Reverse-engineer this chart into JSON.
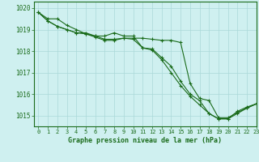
{
  "title": "Graphe pression niveau de la mer (hPa)",
  "background_color": "#cff0f0",
  "grid_color": "#aad8d8",
  "line_color": "#1a6b1a",
  "xlim": [
    -0.5,
    23
  ],
  "ylim": [
    1014.5,
    1020.3
  ],
  "yticks": [
    1015,
    1016,
    1017,
    1018,
    1019,
    1020
  ],
  "xticks": [
    0,
    1,
    2,
    3,
    4,
    5,
    6,
    7,
    8,
    9,
    10,
    11,
    12,
    13,
    14,
    15,
    16,
    17,
    18,
    19,
    20,
    21,
    22,
    23
  ],
  "series": [
    [
      1019.8,
      1019.5,
      1019.5,
      1019.2,
      1019.0,
      1018.8,
      1018.7,
      1018.7,
      1018.85,
      1018.7,
      1018.7,
      1018.15,
      1018.1,
      1017.7,
      1017.3,
      1016.6,
      1016.0,
      1015.7,
      1015.1,
      1014.85,
      1014.85,
      1015.2,
      1015.4,
      1015.55
    ],
    [
      1019.8,
      1019.4,
      1019.15,
      1019.0,
      1018.85,
      1018.85,
      1018.7,
      1018.55,
      1018.55,
      1018.6,
      1018.6,
      1018.6,
      1018.55,
      1018.5,
      1018.5,
      1018.4,
      1016.5,
      1015.8,
      1015.7,
      1014.9,
      1014.9,
      1015.15,
      1015.35,
      1015.55
    ],
    [
      1019.8,
      1019.4,
      1019.15,
      1019.0,
      1018.85,
      1018.8,
      1018.65,
      1018.5,
      1018.5,
      1018.6,
      1018.55,
      1018.15,
      1018.05,
      1017.6,
      1017.0,
      1016.4,
      1015.9,
      1015.5,
      1015.1,
      1014.85,
      1014.85,
      1015.1,
      1015.35,
      1015.55
    ]
  ]
}
